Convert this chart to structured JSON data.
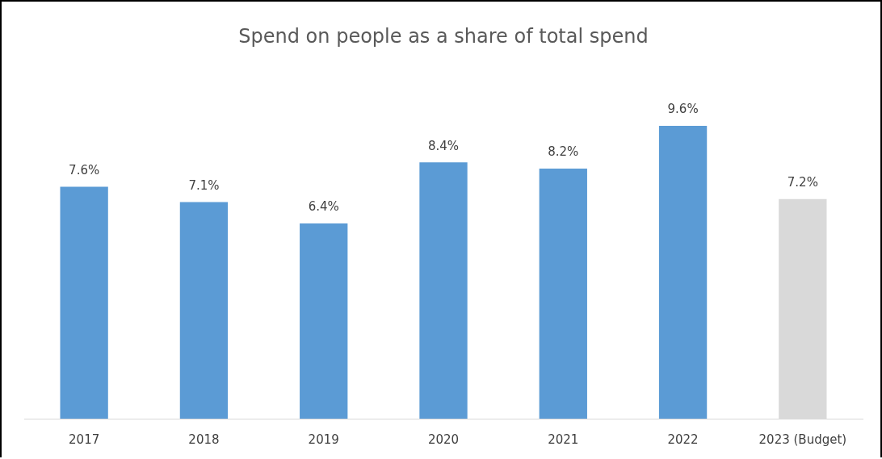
{
  "chart_data": {
    "type": "bar",
    "title": "Spend on people as a share of total spend",
    "categories": [
      "2017",
      "2018",
      "2019",
      "2020",
      "2021",
      "2022",
      "2023 (Budget)"
    ],
    "values": [
      7.6,
      7.1,
      6.4,
      8.4,
      8.2,
      9.6,
      7.2
    ],
    "colors": [
      "#5b9bd5",
      "#5b9bd5",
      "#5b9bd5",
      "#5b9bd5",
      "#5b9bd5",
      "#5b9bd5",
      "#d9d9d9"
    ],
    "value_labels": [
      "7.6%",
      "7.1%",
      "6.4%",
      "8.4%",
      "8.2%",
      "9.6%",
      "7.2%"
    ],
    "grid": false,
    "legend": false
  }
}
